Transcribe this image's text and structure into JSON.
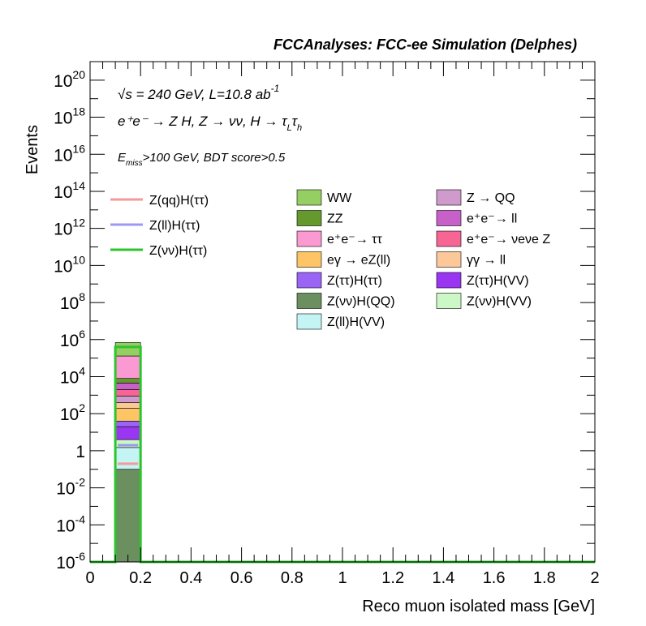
{
  "header": {
    "title": "FCCAnalyses: FCC-ee Simulation (Delphes)"
  },
  "annotations": {
    "line1_sqrt": "√s",
    "line1_rest": " = 240 GeV, L=10.8 ab",
    "line1_exp": "-1",
    "line2": "e⁺e⁻ → Z H, Z → νν, H → τ",
    "line2_sub1": "L",
    "line2_mid": "τ",
    "line2_sub2": "h",
    "line3_E": "E",
    "line3_sub": "miss",
    "line3_rest": ">100 GeV, BDT score>0.5"
  },
  "chart_data": {
    "type": "bar",
    "title": "FCCAnalyses: FCC-ee Simulation (Delphes)",
    "xlabel": "Reco muon isolated mass [GeV]",
    "ylabel": "Events",
    "xlim": [
      0,
      2
    ],
    "ylim": [
      1e-06,
      1e+21
    ],
    "yscale": "log",
    "x_ticks": [
      "0",
      "0.2",
      "0.4",
      "0.6",
      "0.8",
      "1",
      "1.2",
      "1.4",
      "1.6",
      "1.8",
      "2"
    ],
    "y_ticks": [
      {
        "base": "10",
        "exp": "-6",
        "value": 1e-06
      },
      {
        "base": "10",
        "exp": "-4",
        "value": 0.0001
      },
      {
        "base": "10",
        "exp": "-2",
        "value": 0.01
      },
      {
        "base": "1",
        "exp": "",
        "value": 1
      },
      {
        "base": "10",
        "exp": "2",
        "value": 100.0
      },
      {
        "base": "10",
        "exp": "4",
        "value": 10000.0
      },
      {
        "base": "10",
        "exp": "6",
        "value": 1000000.0
      },
      {
        "base": "10",
        "exp": "8",
        "value": 100000000.0
      },
      {
        "base": "10",
        "exp": "10",
        "value": 10000000000.0
      },
      {
        "base": "10",
        "exp": "12",
        "value": 1000000000000.0
      },
      {
        "base": "10",
        "exp": "14",
        "value": 100000000000000.0
      },
      {
        "base": "10",
        "exp": "16",
        "value": 1e+16
      },
      {
        "base": "10",
        "exp": "18",
        "value": 1e+18
      },
      {
        "base": "10",
        "exp": "20",
        "value": 1e+20
      }
    ],
    "bin": [
      0.1,
      0.2
    ],
    "stack_boundaries": [
      {
        "name": "Z(νν)H(QQ)",
        "color": "#6b8f5e",
        "low": 1e-06,
        "high": 0.1
      },
      {
        "name": "Z(ll)H(VV)",
        "color": "#c4f4f4",
        "low": 0.1,
        "high": 1.5
      },
      {
        "name": "Z(νν)H(VV)",
        "color": "#ccf7c6",
        "low": 1.5,
        "high": 4
      },
      {
        "name": "Z(ττ)H(VV)",
        "color": "#9a36f2",
        "low": 4,
        "high": 20
      },
      {
        "name": "Z(ττ)H(ττ)",
        "color": "#9a65f5",
        "low": 20,
        "high": 40
      },
      {
        "name": "eγ → eZ(ll)",
        "color": "#fdc565",
        "low": 40,
        "high": 200
      },
      {
        "name": "γγ → ll",
        "color": "#fdc899",
        "low": 200,
        "high": 400
      },
      {
        "name": "Z → QQ",
        "color": "#cf9bcc",
        "low": 400,
        "high": 900
      },
      {
        "name": "e⁺e⁻ → νeνe Z",
        "color": "#f66594",
        "low": 900,
        "high": 2000
      },
      {
        "name": "e⁺e⁻ → ll",
        "color": "#c860c9",
        "low": 2000,
        "high": 4500
      },
      {
        "name": "ZZ",
        "color": "#65992e",
        "low": 4500,
        "high": 8000
      },
      {
        "name": "e⁺e⁻ → ττ",
        "color": "#fa99d2",
        "low": 8000,
        "high": 130000
      },
      {
        "name": "WW",
        "color": "#95ce63",
        "low": 130000,
        "high": 700000
      }
    ],
    "signal_lines": [
      {
        "name": "Z(qq)H(ττ)",
        "color": "#f59a9a",
        "value": 0.2
      },
      {
        "name": "Z(ll)H(ττ)",
        "color": "#9a9af5",
        "value": 2
      },
      {
        "name": "Z(νν)H(ττ)",
        "color": "#2ec42e",
        "value": 400000
      }
    ],
    "legend_signal": [
      {
        "label": "Z(qq)H(ττ)",
        "color": "#f59a9a"
      },
      {
        "label": "Z(ll)H(ττ)",
        "color": "#9a9af5"
      },
      {
        "label": "Z(νν)H(ττ)",
        "color": "#2ec42e"
      }
    ],
    "legend_bkg_col1": [
      {
        "label": "WW",
        "color": "#95ce63"
      },
      {
        "label": "ZZ",
        "color": "#65992e"
      },
      {
        "label": "e⁺e⁻→ ττ",
        "color": "#fa99d2"
      },
      {
        "label": "eγ → eZ(ll)",
        "color": "#fdc565"
      },
      {
        "label": "Z(ττ)H(ττ)",
        "color": "#9a65f5"
      },
      {
        "label": "Z(νν)H(QQ)",
        "color": "#6b8f5e"
      },
      {
        "label": "Z(ll)H(VV)",
        "color": "#c4f4f4"
      }
    ],
    "legend_bkg_col2": [
      {
        "label": "Z → QQ",
        "color": "#cf9bcc"
      },
      {
        "label": "e⁺e⁻→ ll",
        "color": "#c860c9"
      },
      {
        "label": "e⁺e⁻→ νeνe Z",
        "color": "#f66594"
      },
      {
        "label": "γγ → ll",
        "color": "#fdc899"
      },
      {
        "label": "Z(ττ)H(VV)",
        "color": "#9a36f2"
      },
      {
        "label": "Z(νν)H(VV)",
        "color": "#ccf7c6"
      }
    ],
    "grid": false,
    "legend_placement": "top"
  }
}
